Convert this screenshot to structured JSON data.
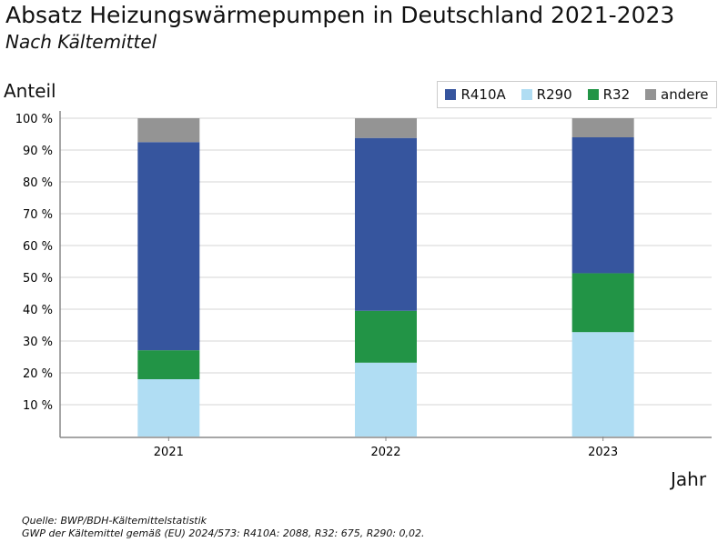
{
  "chart_data": {
    "type": "bar",
    "stacked": true,
    "title": "Absatz Heizungswärmepumpen in Deutschland 2021-2023",
    "subtitle": "Nach Kältemittel",
    "ylabel": "Anteil",
    "xlabel": "Jahr",
    "ylim": [
      0,
      100
    ],
    "yticks": [
      "10 %",
      "20 %",
      "30 %",
      "40 %",
      "50 %",
      "60 %",
      "70 %",
      "80 %",
      "90 %",
      "100 %"
    ],
    "categories": [
      "2021",
      "2022",
      "2023"
    ],
    "series": [
      {
        "name": "R290",
        "color": "#b0ddf3",
        "values": [
          18.0,
          23.2,
          32.8
        ]
      },
      {
        "name": "R32",
        "color": "#229446",
        "values": [
          9.1,
          16.3,
          18.5
        ]
      },
      {
        "name": "R410A",
        "color": "#36559e",
        "values": [
          65.4,
          54.3,
          42.7
        ]
      },
      {
        "name": "andere",
        "color": "#949494",
        "values": [
          7.5,
          6.2,
          6.0
        ]
      }
    ],
    "legend_order": [
      "R410A",
      "R290",
      "R32",
      "andere"
    ],
    "legend_position": "top-right",
    "grid": true
  },
  "source": [
    "Quelle: BWP/BDH-Kältemittelstatistik",
    "GWP der Kältemittel gemäß (EU) 2024/573: R410A: 2088, R32: 675, R290: 0,02."
  ]
}
